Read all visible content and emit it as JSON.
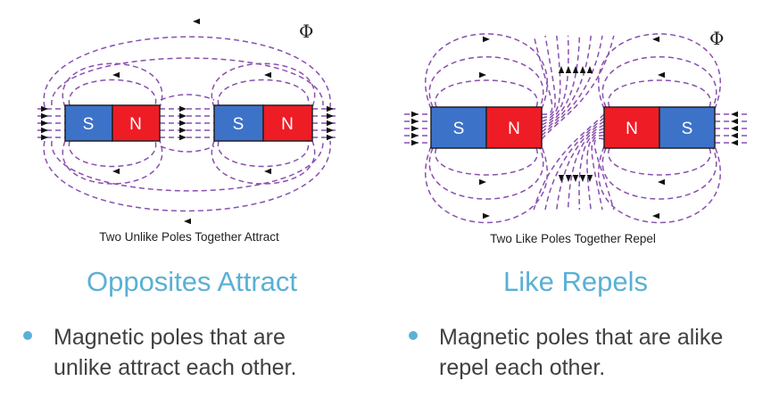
{
  "colors": {
    "heading": "#5ab0d6",
    "bullet_dot": "#5ab0d6",
    "body_text": "#404040",
    "field_line": "#8a4fb0",
    "north_pole": "#ee1c25",
    "south_pole": "#3d72c9",
    "magnet_outline": "#222222"
  },
  "left_panel": {
    "flux_symbol": "Φ",
    "magnet_1": {
      "left_pole": "S",
      "right_pole": "N"
    },
    "magnet_2": {
      "left_pole": "S",
      "right_pole": "N"
    },
    "caption": "Two Unlike Poles Together Attract",
    "heading": "Opposites Attract",
    "bullet": "Magnetic poles that are unlike attract each other."
  },
  "right_panel": {
    "flux_symbol": "Φ",
    "magnet_1": {
      "left_pole": "S",
      "right_pole": "N"
    },
    "magnet_2": {
      "left_pole": "N",
      "right_pole": "S"
    },
    "caption": "Two Like Poles Together Repel",
    "heading": "Like Repels",
    "bullet": "Magnetic poles that are alike repel each other."
  }
}
